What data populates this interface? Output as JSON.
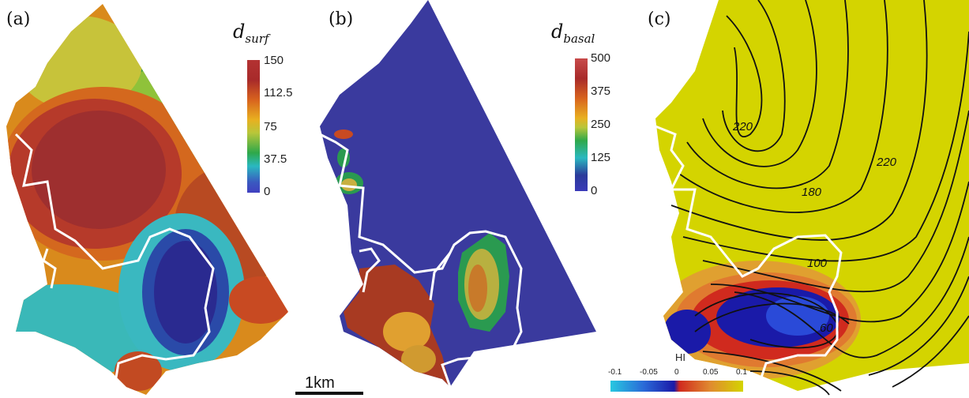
{
  "panels": {
    "a": {
      "label": "(a)",
      "cb_title_main": "d",
      "cb_title_sub": "surf",
      "ticks": [
        "150",
        "112.5",
        "75",
        "37.5",
        "0"
      ]
    },
    "b": {
      "label": "(b)",
      "cb_title_main": "d",
      "cb_title_sub": "basal",
      "ticks": [
        "500",
        "375",
        "250",
        "125",
        "0"
      ]
    },
    "c": {
      "label": "(c)",
      "contour_labels": [
        "220",
        "220",
        "180",
        "100",
        "60"
      ],
      "hi_title": "HI",
      "hi_ticks": [
        "-0.1",
        "-0.05",
        "0",
        "0.05",
        "0.1"
      ]
    }
  },
  "scale_bar": {
    "label": "1km"
  },
  "colors": {
    "yellow_field": "#d4d400",
    "blue_field": "#3a3a9e",
    "outline": "#ffffff"
  }
}
